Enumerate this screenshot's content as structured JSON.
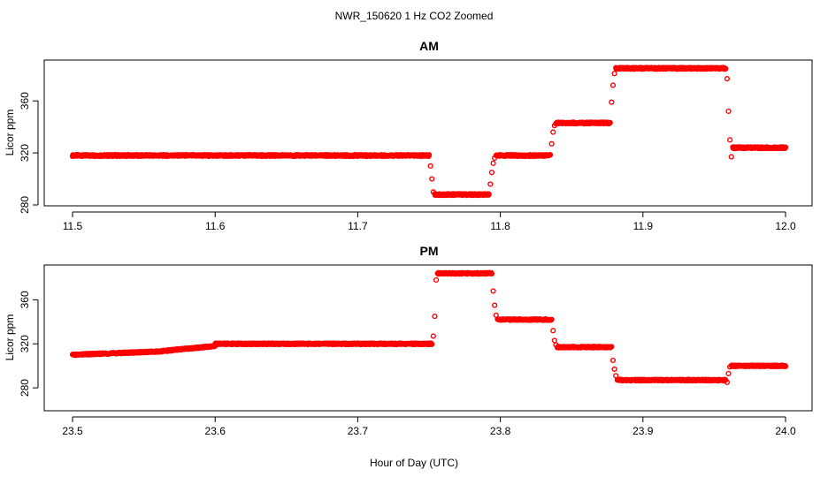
{
  "figure": {
    "title": "NWR_150620  1 Hz CO2 Zoomed",
    "xlabel": "Hour of Day (UTC)"
  },
  "chart_data": [
    {
      "type": "scatter",
      "title": "AM",
      "ylabel": "Licor ppm",
      "xlim": [
        11.5,
        12.0
      ],
      "ylim": [
        280,
        390
      ],
      "xticks": [
        11.5,
        11.6,
        11.7,
        11.8,
        11.9,
        12.0
      ],
      "xtick_labels": [
        "11.5",
        "11.6",
        "11.7",
        "11.8",
        "11.9",
        "12.0"
      ],
      "yticks": [
        280,
        320,
        360
      ],
      "ytick_labels": [
        "280",
        "320",
        "360"
      ],
      "marker": "open-circle",
      "color": "#ff0000",
      "grid": false,
      "segments": [
        {
          "x_start": 11.5,
          "x_end": 11.75,
          "y": 318
        },
        {
          "x_start": 11.754,
          "x_end": 11.792,
          "y": 288
        },
        {
          "x_start": 11.797,
          "x_end": 11.835,
          "y": 318
        },
        {
          "x_start": 11.839,
          "x_end": 11.877,
          "y": 343
        },
        {
          "x_start": 11.881,
          "x_end": 11.958,
          "y": 385
        },
        {
          "x_start": 11.963,
          "x_end": 12.0,
          "y": 324
        }
      ],
      "transitions": [
        {
          "x": [
            11.751,
            11.752,
            11.753
          ],
          "y": [
            310,
            300,
            290
          ]
        },
        {
          "x": [
            11.793,
            11.794,
            11.795,
            11.796
          ],
          "y": [
            296,
            305,
            312,
            316
          ]
        },
        {
          "x": [
            11.836,
            11.837,
            11.838
          ],
          "y": [
            327,
            336,
            341
          ]
        },
        {
          "x": [
            11.878,
            11.879,
            11.88
          ],
          "y": [
            359,
            372,
            381
          ]
        },
        {
          "x": [
            11.959,
            11.96,
            11.961,
            11.962
          ],
          "y": [
            377,
            352,
            330,
            317
          ]
        }
      ]
    },
    {
      "type": "scatter",
      "title": "PM",
      "ylabel": "Licor ppm",
      "xlim": [
        23.5,
        24.0
      ],
      "ylim": [
        260,
        390
      ],
      "xticks": [
        23.5,
        23.6,
        23.7,
        23.8,
        23.9,
        24.0
      ],
      "xtick_labels": [
        "23.5",
        "23.6",
        "23.7",
        "23.8",
        "23.9",
        "24.0"
      ],
      "yticks": [
        280,
        320,
        360
      ],
      "ytick_labels": [
        "280",
        "320",
        "360"
      ],
      "marker": "open-circle",
      "color": "#ff0000",
      "grid": false,
      "segments": [
        {
          "x_start": 23.5,
          "x_end": 23.56,
          "y_start": 310,
          "y_end": 313
        },
        {
          "x_start": 23.56,
          "x_end": 23.6,
          "y_start": 313,
          "y_end": 318
        },
        {
          "x_start": 23.6,
          "x_end": 23.752,
          "y": 320
        },
        {
          "x_start": 23.756,
          "x_end": 23.794,
          "y": 384
        },
        {
          "x_start": 23.798,
          "x_end": 23.836,
          "y": 342
        },
        {
          "x_start": 23.84,
          "x_end": 23.878,
          "y": 317
        },
        {
          "x_start": 23.882,
          "x_end": 23.958,
          "y": 287
        },
        {
          "x_start": 23.962,
          "x_end": 24.0,
          "y": 300
        }
      ],
      "transitions": [
        {
          "x": [
            23.753,
            23.754,
            23.755
          ],
          "y": [
            327,
            345,
            378
          ]
        },
        {
          "x": [
            23.795,
            23.796,
            23.797
          ],
          "y": [
            368,
            355,
            346
          ]
        },
        {
          "x": [
            23.837,
            23.838,
            23.839
          ],
          "y": [
            332,
            323,
            319
          ]
        },
        {
          "x": [
            23.879,
            23.88,
            23.881
          ],
          "y": [
            305,
            297,
            291
          ]
        },
        {
          "x": [
            23.959,
            23.96,
            23.961
          ],
          "y": [
            285,
            293,
            299
          ]
        }
      ]
    }
  ]
}
